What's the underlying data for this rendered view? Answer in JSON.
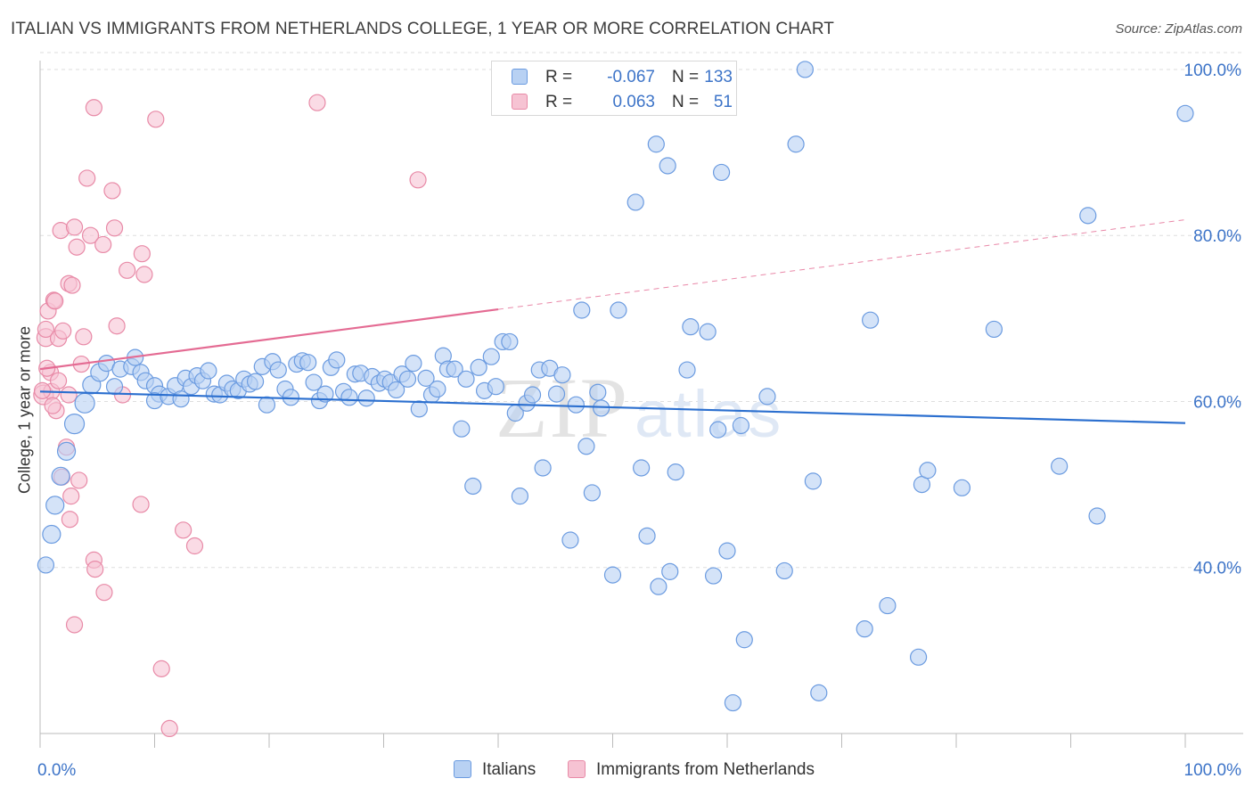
{
  "title": "ITALIAN VS IMMIGRANTS FROM NETHERLANDS COLLEGE, 1 YEAR OR MORE CORRELATION CHART",
  "source": "Source: ZipAtlas.com",
  "watermark": "ZIPatlas",
  "colors": {
    "blue_fill": "#b8d1f3",
    "blue_stroke": "#6b9be0",
    "blue_line": "#2b6fcf",
    "pink_fill": "#f6c3d3",
    "pink_stroke": "#e88aa7",
    "pink_line": "#e46b93",
    "axis_label": "#3d74c8",
    "grid": "#dedede"
  },
  "stats": [
    {
      "series": "Italians",
      "r_label": "R =",
      "r_value": "-0.067",
      "n_label": "N =",
      "n_value": "133"
    },
    {
      "series": "Immigrants from Netherlands",
      "r_label": "R =",
      "r_value": "0.063",
      "n_label": "N =",
      "n_value": "51"
    }
  ],
  "legend": [
    {
      "label": "Italians",
      "color": "blue"
    },
    {
      "label": "Immigrants from Netherlands",
      "color": "pink"
    }
  ],
  "chart_data": {
    "type": "scatter",
    "xlabel": "",
    "ylabel": "College, 1 year or more",
    "xlim": [
      0,
      100
    ],
    "ylim": [
      20,
      103
    ],
    "x_tick_labels": [
      {
        "value": 0,
        "label": "0.0%"
      },
      {
        "value": 100,
        "label": "100.0%"
      }
    ],
    "y_tick_labels": [
      {
        "value": 40,
        "label": "40.0%"
      },
      {
        "value": 60,
        "label": "60.0%"
      },
      {
        "value": 80,
        "label": "80.0%"
      },
      {
        "value": 100,
        "label": "100.0%"
      }
    ],
    "grid": "horizontal-dashed",
    "legend_position": "bottom-center",
    "series": [
      {
        "name": "Italians",
        "color": "blue",
        "trend": {
          "x": [
            0,
            100
          ],
          "y": [
            61.2,
            57.4
          ],
          "dashed_from": null
        },
        "points": [
          [
            0.5,
            40.3,
            9
          ],
          [
            1.0,
            44.0,
            10
          ],
          [
            1.3,
            47.5,
            10
          ],
          [
            1.8,
            51.0,
            10
          ],
          [
            2.3,
            54.0,
            10
          ],
          [
            3.0,
            57.3,
            11
          ],
          [
            3.9,
            59.8,
            11
          ],
          [
            4.5,
            62.0,
            10
          ],
          [
            5.2,
            63.5,
            10
          ],
          [
            5.8,
            64.6,
            9
          ],
          [
            6.5,
            61.8,
            9
          ],
          [
            7.0,
            63.9,
            9
          ],
          [
            8.0,
            64.2,
            9
          ],
          [
            8.3,
            65.3,
            9
          ],
          [
            8.8,
            63.5,
            9
          ],
          [
            9.2,
            62.5,
            9
          ],
          [
            10.0,
            61.9,
            9
          ],
          [
            10.4,
            60.9,
            9
          ],
          [
            10.0,
            60.1,
            9
          ],
          [
            11.2,
            60.6,
            9
          ],
          [
            11.8,
            61.9,
            9
          ],
          [
            12.3,
            60.3,
            9
          ],
          [
            12.7,
            62.8,
            9
          ],
          [
            13.2,
            61.8,
            9
          ],
          [
            13.7,
            63.1,
            9
          ],
          [
            14.2,
            62.5,
            9
          ],
          [
            14.7,
            63.7,
            9
          ],
          [
            15.2,
            60.9,
            9
          ],
          [
            15.7,
            60.8,
            9
          ],
          [
            16.3,
            62.2,
            9
          ],
          [
            16.8,
            61.5,
            9
          ],
          [
            17.3,
            61.3,
            9
          ],
          [
            17.8,
            62.7,
            9
          ],
          [
            18.3,
            62.1,
            9
          ],
          [
            18.8,
            62.4,
            9
          ],
          [
            19.4,
            64.2,
            9
          ],
          [
            19.8,
            59.6,
            9
          ],
          [
            20.3,
            64.8,
            9
          ],
          [
            20.8,
            63.8,
            9
          ],
          [
            21.4,
            61.5,
            9
          ],
          [
            21.9,
            60.5,
            9
          ],
          [
            22.4,
            64.5,
            9
          ],
          [
            22.9,
            64.9,
            9
          ],
          [
            23.4,
            64.7,
            9
          ],
          [
            23.9,
            62.3,
            9
          ],
          [
            24.4,
            60.1,
            9
          ],
          [
            24.9,
            60.9,
            9
          ],
          [
            25.4,
            64.1,
            9
          ],
          [
            25.9,
            65.0,
            9
          ],
          [
            26.5,
            61.2,
            9
          ],
          [
            27.0,
            60.5,
            9
          ],
          [
            27.5,
            63.3,
            9
          ],
          [
            28.0,
            63.4,
            9
          ],
          [
            28.5,
            60.4,
            9
          ],
          [
            29.0,
            63.0,
            9
          ],
          [
            29.6,
            62.2,
            9
          ],
          [
            30.1,
            62.7,
            9
          ],
          [
            30.6,
            62.3,
            9
          ],
          [
            31.1,
            61.4,
            9
          ],
          [
            31.6,
            63.3,
            9
          ],
          [
            32.1,
            62.7,
            9
          ],
          [
            32.6,
            64.6,
            9
          ],
          [
            33.1,
            59.1,
            9
          ],
          [
            33.7,
            62.8,
            9
          ],
          [
            34.2,
            60.8,
            9
          ],
          [
            34.7,
            61.5,
            9
          ],
          [
            35.2,
            65.5,
            9
          ],
          [
            35.6,
            63.9,
            9
          ],
          [
            36.2,
            63.9,
            9
          ],
          [
            36.8,
            56.7,
            9
          ],
          [
            37.2,
            62.7,
            9
          ],
          [
            37.8,
            49.8,
            9
          ],
          [
            38.3,
            64.1,
            9
          ],
          [
            38.8,
            61.3,
            9
          ],
          [
            39.4,
            65.4,
            9
          ],
          [
            39.8,
            61.8,
            9
          ],
          [
            40.4,
            67.2,
            9
          ],
          [
            41.0,
            67.2,
            9
          ],
          [
            41.5,
            58.6,
            9
          ],
          [
            41.9,
            48.6,
            9
          ],
          [
            42.5,
            59.8,
            9
          ],
          [
            43.0,
            60.8,
            9
          ],
          [
            43.6,
            63.8,
            9
          ],
          [
            43.9,
            52.0,
            9
          ],
          [
            44.5,
            64.0,
            9
          ],
          [
            45.1,
            60.9,
            9
          ],
          [
            45.6,
            63.2,
            9
          ],
          [
            46.3,
            43.3,
            9
          ],
          [
            46.8,
            59.6,
            9
          ],
          [
            47.3,
            71.0,
            9
          ],
          [
            47.7,
            54.6,
            9
          ],
          [
            48.2,
            49.0,
            9
          ],
          [
            48.7,
            61.1,
            9
          ],
          [
            49.0,
            59.2,
            9
          ],
          [
            50.0,
            39.1,
            9
          ],
          [
            50.5,
            71.0,
            9
          ],
          [
            52.0,
            84.0,
            9
          ],
          [
            52.5,
            52.0,
            9
          ],
          [
            53.0,
            43.8,
            9
          ],
          [
            53.8,
            91.0,
            9
          ],
          [
            54.0,
            37.7,
            9
          ],
          [
            54.8,
            88.4,
            9
          ],
          [
            55.0,
            39.5,
            9
          ],
          [
            55.5,
            51.5,
            9
          ],
          [
            56.5,
            63.8,
            9
          ],
          [
            56.8,
            69.0,
            9
          ],
          [
            57.2,
            97.5,
            9
          ],
          [
            58.3,
            68.4,
            9
          ],
          [
            58.8,
            39.0,
            9
          ],
          [
            59.2,
            56.6,
            9
          ],
          [
            59.5,
            87.6,
            9
          ],
          [
            60.0,
            42.0,
            9
          ],
          [
            60.5,
            23.7,
            9
          ],
          [
            61.2,
            57.1,
            9
          ],
          [
            61.5,
            31.3,
            9
          ],
          [
            63.5,
            60.6,
            9
          ],
          [
            65.0,
            39.6,
            9
          ],
          [
            66.8,
            100.0,
            9
          ],
          [
            66.0,
            91.0,
            9
          ],
          [
            68.0,
            24.9,
            9
          ],
          [
            67.5,
            50.4,
            9
          ],
          [
            72.5,
            69.8,
            9
          ],
          [
            72.0,
            32.6,
            9
          ],
          [
            74.0,
            35.4,
            9
          ],
          [
            76.7,
            29.2,
            9
          ],
          [
            77.0,
            50.0,
            9
          ],
          [
            77.5,
            51.7,
            9
          ],
          [
            80.5,
            49.6,
            9
          ],
          [
            83.3,
            68.7,
            9
          ],
          [
            89.0,
            52.2,
            9
          ],
          [
            91.5,
            82.4,
            9
          ],
          [
            92.3,
            46.2,
            9
          ],
          [
            100.0,
            94.7,
            9
          ]
        ]
      },
      {
        "name": "Immigrants from Netherlands",
        "color": "pink",
        "trend": {
          "x": [
            0,
            100
          ],
          "y": [
            63.9,
            81.9
          ],
          "dashed_from": 40
        },
        "points": [
          [
            0.3,
            60.8,
            11
          ],
          [
            0.5,
            67.7,
            10
          ],
          [
            0.7,
            70.9,
            9
          ],
          [
            0.5,
            68.7,
            9
          ],
          [
            0.9,
            63.5,
            9
          ],
          [
            1.0,
            61.2,
            9
          ],
          [
            1.2,
            72.2,
            9
          ],
          [
            1.3,
            72.1,
            9
          ],
          [
            1.4,
            58.9,
            9
          ],
          [
            1.6,
            62.5,
            9
          ],
          [
            1.6,
            67.6,
            9
          ],
          [
            1.8,
            80.6,
            9
          ],
          [
            1.9,
            50.9,
            9
          ],
          [
            2.0,
            68.5,
            9
          ],
          [
            2.3,
            54.5,
            9
          ],
          [
            2.5,
            74.2,
            9
          ],
          [
            2.5,
            60.8,
            9
          ],
          [
            2.8,
            74.0,
            9
          ],
          [
            2.6,
            45.8,
            9
          ],
          [
            2.7,
            48.6,
            9
          ],
          [
            3.0,
            81.0,
            9
          ],
          [
            3.2,
            78.6,
            9
          ],
          [
            3.0,
            33.1,
            9
          ],
          [
            3.4,
            50.5,
            9
          ],
          [
            3.6,
            64.5,
            9
          ],
          [
            3.8,
            67.8,
            9
          ],
          [
            4.1,
            86.9,
            9
          ],
          [
            4.4,
            80.0,
            9
          ],
          [
            4.7,
            40.9,
            9
          ],
          [
            4.8,
            39.8,
            9
          ],
          [
            4.7,
            95.4,
            9
          ],
          [
            5.5,
            78.9,
            9
          ],
          [
            5.6,
            37.0,
            9
          ],
          [
            6.3,
            85.4,
            9
          ],
          [
            6.5,
            80.9,
            9
          ],
          [
            6.7,
            69.1,
            9
          ],
          [
            7.2,
            60.8,
            9
          ],
          [
            7.6,
            75.8,
            9
          ],
          [
            8.8,
            47.6,
            9
          ],
          [
            8.9,
            77.8,
            9
          ],
          [
            9.1,
            75.3,
            9
          ],
          [
            10.1,
            94.0,
            9
          ],
          [
            10.6,
            27.8,
            9
          ],
          [
            11.3,
            20.6,
            9
          ],
          [
            12.5,
            44.5,
            9
          ],
          [
            13.5,
            42.6,
            9
          ],
          [
            24.2,
            96.0,
            9
          ],
          [
            33.0,
            86.7,
            9
          ],
          [
            0.2,
            61.3,
            9
          ],
          [
            0.6,
            64.0,
            9
          ],
          [
            1.1,
            59.5,
            9
          ]
        ]
      }
    ]
  }
}
